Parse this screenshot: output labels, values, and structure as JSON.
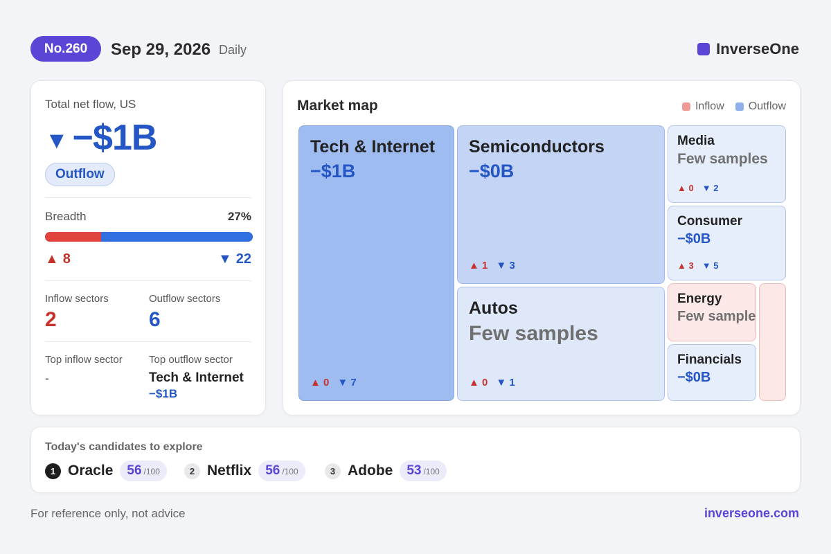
{
  "header": {
    "issue": "No.260",
    "date": "Sep 29, 2026",
    "frequency": "Daily",
    "brand": "InverseOne",
    "brand_color": "#5b45d6"
  },
  "summary": {
    "label": "Total net flow, US",
    "arrow": "▼",
    "value": "−$1B",
    "badge": "Outflow",
    "breadth_label": "Breadth",
    "breadth_pct": "27%",
    "breadth_fraction": 0.27,
    "up_arrow": "▲",
    "down_arrow": "▼",
    "up_count": "8",
    "down_count": "22",
    "inflow_sectors_label": "Inflow sectors",
    "inflow_sectors": "2",
    "outflow_sectors_label": "Outflow sectors",
    "outflow_sectors": "6",
    "top_inflow_label": "Top inflow sector",
    "top_inflow": "-",
    "top_outflow_label": "Top outflow sector",
    "top_outflow_name": "Tech & Internet",
    "top_outflow_value": "−$1B"
  },
  "market_map": {
    "title": "Market map",
    "legend": [
      {
        "label": "Inflow",
        "color": "#ee9b97"
      },
      {
        "label": "Outflow",
        "color": "#8fb0ea"
      }
    ],
    "tiles": [
      {
        "name": "Tech & Internet",
        "value": "−$1B",
        "up": "0",
        "down": "7"
      },
      {
        "name": "Semiconductors",
        "value": "−$0B",
        "up": "1",
        "down": "3"
      },
      {
        "name": "Autos",
        "value": "Few samples",
        "up": "0",
        "down": "1"
      },
      {
        "name": "Media",
        "value": "Few samples",
        "up": "0",
        "down": "2"
      },
      {
        "name": "Consumer",
        "value": "−$0B",
        "up": "3",
        "down": "5"
      },
      {
        "name": "Energy",
        "value": "Few samples"
      },
      {
        "name": "Financials",
        "value": "−$0B"
      }
    ]
  },
  "candidates": {
    "title": "Today's candidates to explore",
    "max": "/100",
    "items": [
      {
        "rank": "1",
        "name": "Oracle",
        "score": "56"
      },
      {
        "rank": "2",
        "name": "Netflix",
        "score": "56"
      },
      {
        "rank": "3",
        "name": "Adobe",
        "score": "53"
      }
    ]
  },
  "footer": {
    "disclaimer": "For reference only, not advice",
    "link": "inverseone.com"
  }
}
